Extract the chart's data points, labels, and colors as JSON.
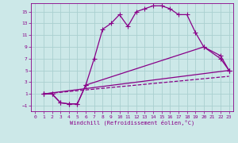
{
  "xlabel": "Windchill (Refroidissement éolien,°C)",
  "bg_color": "#cce8e8",
  "grid_color": "#aad0d0",
  "line_color": "#880088",
  "xlim": [
    -0.5,
    23.5
  ],
  "ylim": [
    -2,
    16.5
  ],
  "xticks": [
    0,
    1,
    2,
    3,
    4,
    5,
    6,
    7,
    8,
    9,
    10,
    11,
    12,
    13,
    14,
    15,
    16,
    17,
    18,
    19,
    20,
    21,
    22,
    23
  ],
  "yticks": [
    -1,
    1,
    3,
    5,
    7,
    9,
    11,
    13,
    15
  ],
  "line1_x": [
    1,
    2,
    3,
    4,
    5,
    6,
    7,
    8,
    9,
    10,
    11,
    12,
    13,
    14,
    15,
    16,
    17,
    18,
    19,
    20,
    22,
    23
  ],
  "line1_y": [
    1,
    1,
    -0.5,
    -0.7,
    -0.7,
    2.5,
    7,
    12,
    13,
    14.5,
    12.5,
    15,
    15.5,
    16,
    16,
    15.5,
    14.5,
    14.5,
    11.5,
    9,
    7,
    5
  ],
  "line2_x": [
    1,
    2,
    3,
    4,
    5,
    6,
    20,
    22,
    23
  ],
  "line2_y": [
    1,
    1,
    -0.5,
    -0.7,
    -0.7,
    2.5,
    9,
    7.5,
    5
  ],
  "line3_x": [
    1,
    23
  ],
  "line3_y": [
    1,
    5
  ],
  "line4_x": [
    1,
    23
  ],
  "line4_y": [
    1,
    4
  ],
  "marker": "+",
  "markersize": 4,
  "linewidth": 0.9
}
